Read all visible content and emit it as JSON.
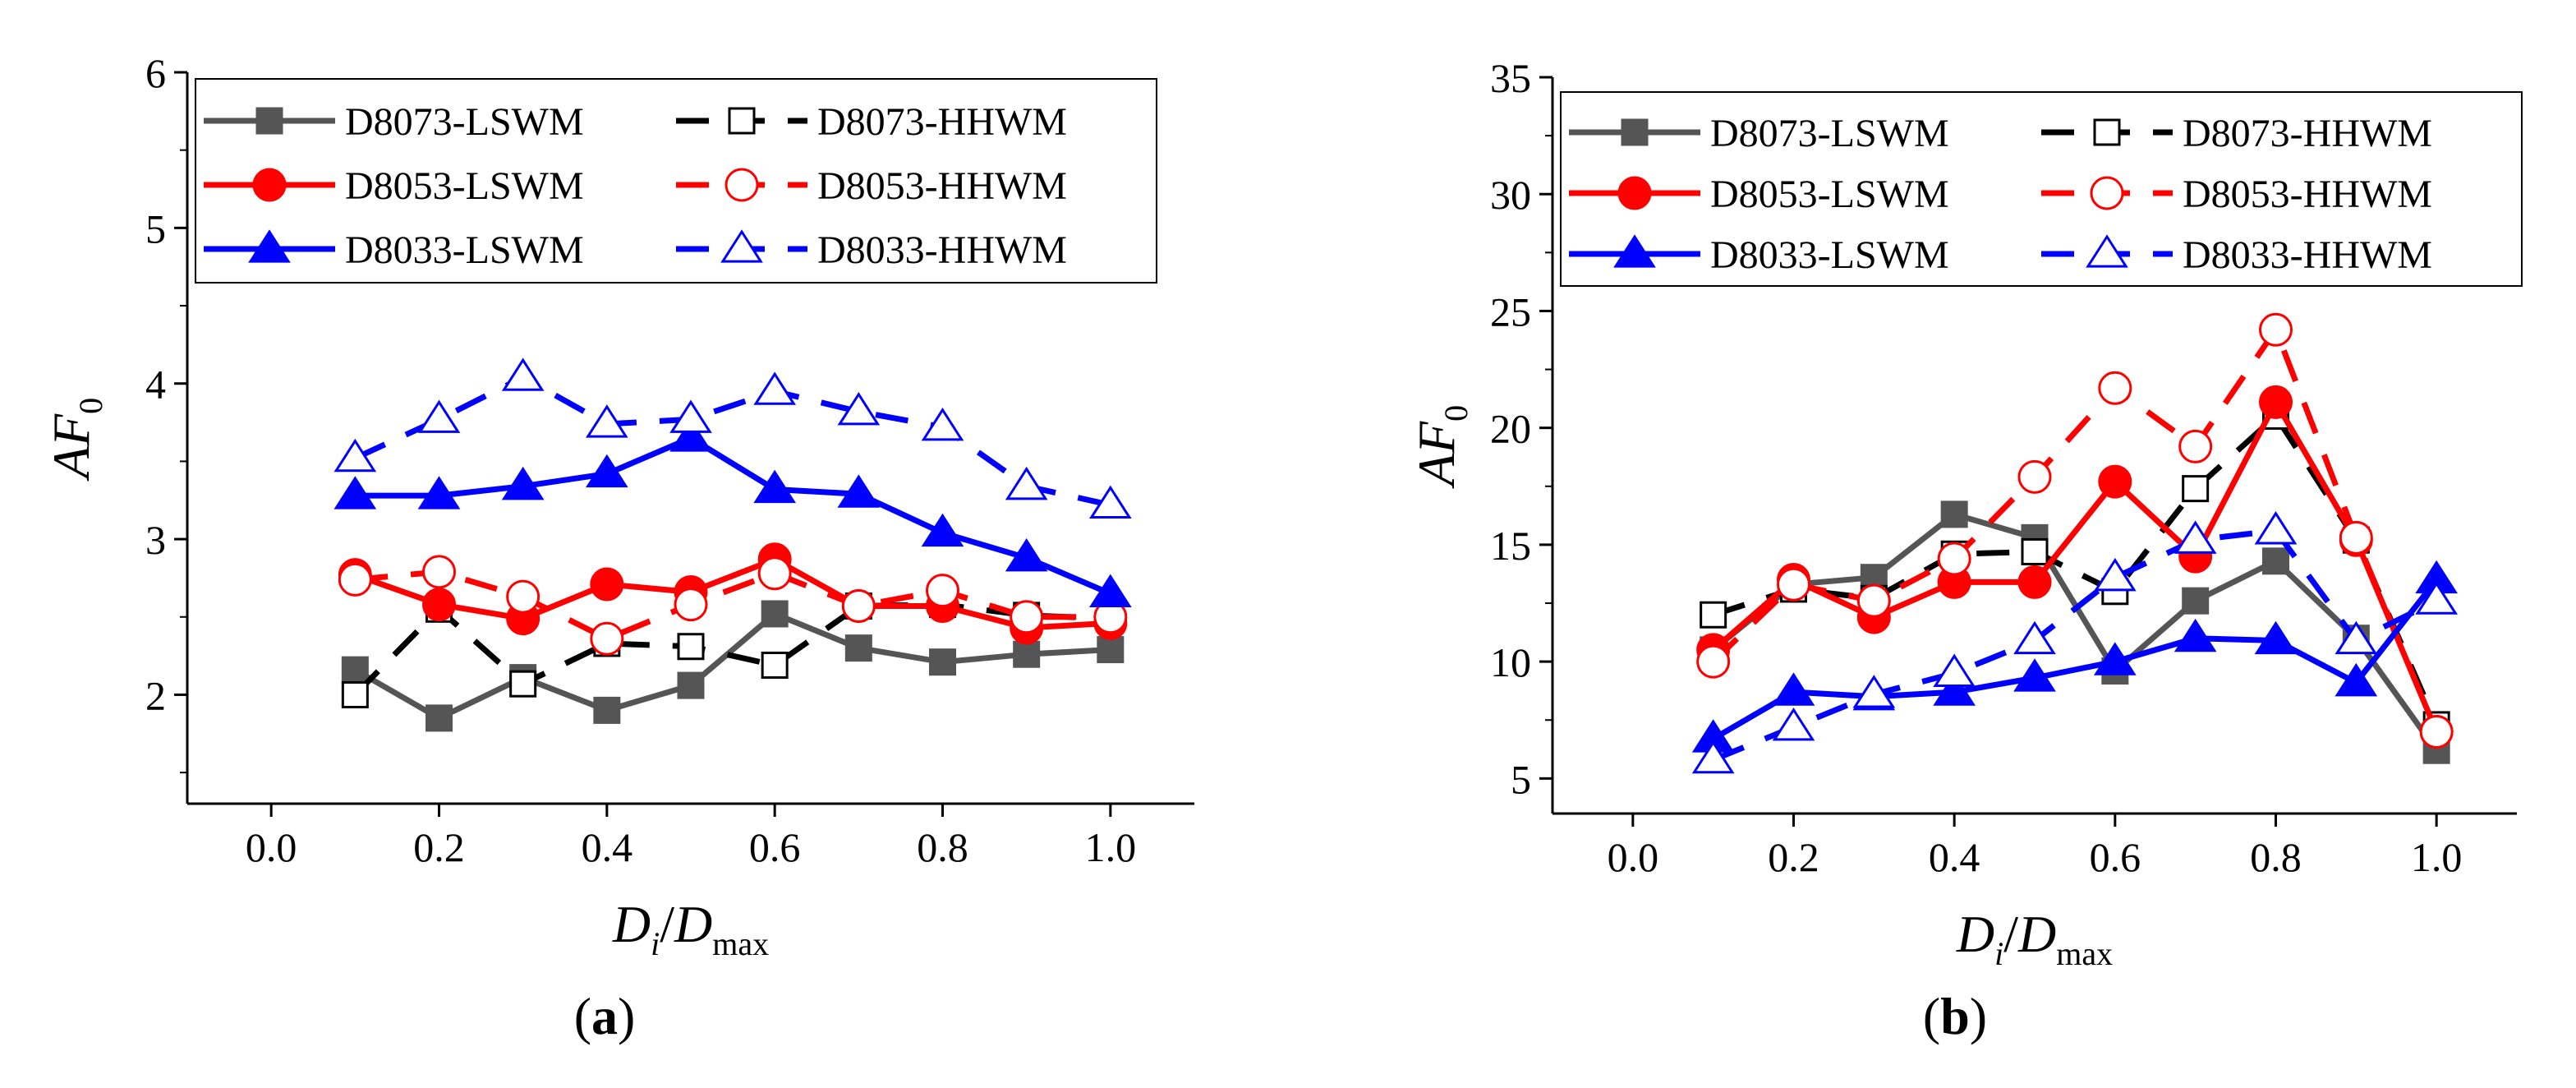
{
  "chart_data": [
    {
      "type": "line",
      "panel_label": "a",
      "xlabel": {
        "main": "D",
        "sub1": "i",
        "slash": "/",
        "main2": "D",
        "sub2": "max"
      },
      "ylabel": {
        "main": "AF",
        "sub": "0"
      },
      "xlim": [
        -0.1,
        1.1
      ],
      "ylim": [
        1.3,
        6
      ],
      "xticks": [
        "0.0",
        "0.2",
        "0.4",
        "0.6",
        "0.8",
        "1.0"
      ],
      "yticks": [
        "2",
        "3",
        "4",
        "5",
        "6"
      ],
      "legend_position": "top",
      "series": [
        {
          "name": "D8073-LSWM",
          "color": "#555555",
          "dash": false,
          "marker": "square",
          "filled": true,
          "x": [
            0.1,
            0.2,
            0.3,
            0.4,
            0.5,
            0.6,
            0.7,
            0.8,
            0.9,
            1.0
          ],
          "y": [
            2.16,
            1.85,
            2.11,
            1.9,
            2.06,
            2.52,
            2.3,
            2.21,
            2.26,
            2.29
          ]
        },
        {
          "name": "D8073-HHWM",
          "color": "#000000",
          "dash": true,
          "marker": "square",
          "filled": false,
          "x": [
            0.1,
            0.2,
            0.3,
            0.4,
            0.5,
            0.6,
            0.7,
            0.8,
            0.9,
            1.0
          ],
          "y": [
            2.0,
            2.55,
            2.07,
            2.33,
            2.31,
            2.19,
            2.57,
            2.58,
            2.51,
            2.49
          ]
        },
        {
          "name": "D8053-LSWM",
          "color": "#ff0000",
          "dash": false,
          "marker": "circle",
          "filled": true,
          "x": [
            0.1,
            0.2,
            0.3,
            0.4,
            0.5,
            0.6,
            0.7,
            0.8,
            0.9,
            1.0
          ],
          "y": [
            2.77,
            2.58,
            2.49,
            2.71,
            2.66,
            2.87,
            2.57,
            2.57,
            2.43,
            2.46
          ]
        },
        {
          "name": "D8053-HHWM",
          "color": "#ff0000",
          "dash": true,
          "marker": "circle",
          "filled": false,
          "x": [
            0.1,
            0.2,
            0.3,
            0.4,
            0.5,
            0.6,
            0.7,
            0.8,
            0.9,
            1.0
          ],
          "y": [
            2.74,
            2.79,
            2.63,
            2.36,
            2.58,
            2.78,
            2.57,
            2.67,
            2.5,
            2.5
          ]
        },
        {
          "name": "D8033-LSWM",
          "color": "#0000ff",
          "dash": false,
          "marker": "triangle",
          "filled": true,
          "x": [
            0.1,
            0.2,
            0.3,
            0.4,
            0.5,
            0.6,
            0.7,
            0.8,
            0.9,
            1.0
          ],
          "y": [
            3.28,
            3.28,
            3.34,
            3.42,
            3.65,
            3.32,
            3.29,
            3.04,
            2.88,
            2.65
          ]
        },
        {
          "name": "D8033-HHWM",
          "color": "#0000ff",
          "dash": true,
          "marker": "triangle",
          "filled": false,
          "x": [
            0.1,
            0.2,
            0.3,
            0.4,
            0.5,
            0.6,
            0.7,
            0.8,
            0.9,
            1.0
          ],
          "y": [
            3.52,
            3.77,
            4.04,
            3.74,
            3.77,
            3.95,
            3.82,
            3.72,
            3.34,
            3.22
          ]
        }
      ]
    },
    {
      "type": "line",
      "panel_label": "b",
      "xlabel": {
        "main": "D",
        "sub1": "i",
        "slash": "/",
        "main2": "D",
        "sub2": "max"
      },
      "ylabel": {
        "main": "AF",
        "sub": "0"
      },
      "xlim": [
        -0.1,
        1.1
      ],
      "ylim": [
        3.5,
        35
      ],
      "xticks": [
        "0.0",
        "0.2",
        "0.4",
        "0.6",
        "0.8",
        "1.0"
      ],
      "yticks": [
        "5",
        "10",
        "15",
        "20",
        "25",
        "30",
        "35"
      ],
      "legend_position": "top",
      "series": [
        {
          "name": "D8073-LSWM",
          "color": "#555555",
          "dash": false,
          "marker": "square",
          "filled": true,
          "x": [
            0.1,
            0.2,
            0.3,
            0.4,
            0.5,
            0.6,
            0.7,
            0.8,
            0.9,
            1.0
          ],
          "y": [
            10.5,
            13.3,
            13.6,
            16.3,
            15.3,
            9.6,
            12.6,
            14.3,
            11.0,
            6.2
          ]
        },
        {
          "name": "D8073-HHWM",
          "color": "#000000",
          "dash": true,
          "marker": "square",
          "filled": false,
          "x": [
            0.1,
            0.2,
            0.3,
            0.4,
            0.5,
            0.6,
            0.7,
            0.8,
            0.9,
            1.0
          ],
          "y": [
            12.0,
            13.1,
            12.7,
            14.6,
            14.7,
            13.0,
            17.4,
            20.5,
            15.2,
            7.3
          ]
        },
        {
          "name": "D8053-LSWM",
          "color": "#ff0000",
          "dash": false,
          "marker": "circle",
          "filled": true,
          "x": [
            0.1,
            0.2,
            0.3,
            0.4,
            0.5,
            0.6,
            0.7,
            0.8,
            0.9,
            1.0
          ],
          "y": [
            10.5,
            13.5,
            11.9,
            13.4,
            13.4,
            17.7,
            14.5,
            21.1,
            15.2,
            7.0
          ]
        },
        {
          "name": "D8053-HHWM",
          "color": "#ff0000",
          "dash": true,
          "marker": "circle",
          "filled": false,
          "x": [
            0.1,
            0.2,
            0.3,
            0.4,
            0.5,
            0.6,
            0.7,
            0.8,
            0.9,
            1.0
          ],
          "y": [
            10.0,
            13.3,
            12.6,
            14.4,
            17.9,
            21.7,
            19.2,
            24.2,
            15.3,
            7.0
          ]
        },
        {
          "name": "D8033-LSWM",
          "color": "#0000ff",
          "dash": false,
          "marker": "triangle",
          "filled": true,
          "x": [
            0.1,
            0.2,
            0.3,
            0.4,
            0.5,
            0.6,
            0.7,
            0.8,
            0.9,
            1.0
          ],
          "y": [
            6.7,
            8.7,
            8.5,
            8.7,
            9.3,
            10.0,
            11.0,
            10.9,
            9.1,
            13.5
          ]
        },
        {
          "name": "D8033-HHWM",
          "color": "#0000ff",
          "dash": true,
          "marker": "triangle",
          "filled": false,
          "x": [
            0.1,
            0.2,
            0.3,
            0.4,
            0.5,
            0.6,
            0.7,
            0.8,
            0.9,
            1.0
          ],
          "y": [
            5.8,
            7.2,
            8.6,
            9.5,
            10.9,
            13.6,
            15.2,
            15.6,
            10.9,
            12.6
          ]
        }
      ]
    }
  ]
}
